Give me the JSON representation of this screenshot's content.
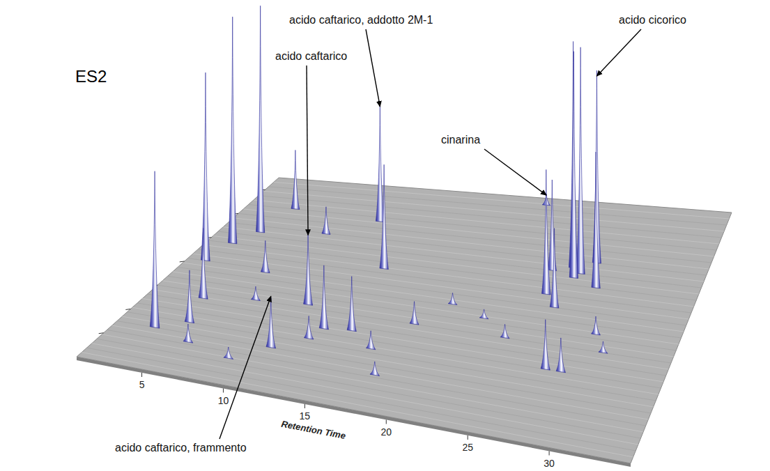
{
  "chart_data": {
    "type": "surface3d",
    "title": "ES2",
    "x_label": "Retention Time",
    "xlim": [
      1,
      35
    ],
    "xticks": [
      5,
      10,
      15,
      20,
      25,
      30
    ],
    "ylim": [
      0,
      750
    ],
    "yticks": [
      100,
      200,
      300,
      400,
      500,
      600,
      700
    ],
    "zlim": [
      0,
      100
    ],
    "tick_labels": "x",
    "color": "#2a2a9a",
    "peaks": [
      {
        "rt": 2.7,
        "mz": 488,
        "intensity": 100
      },
      {
        "rt": 3.7,
        "mz": 540,
        "intensity": 100
      },
      {
        "rt": 2.2,
        "mz": 413,
        "intensity": 83
      },
      {
        "rt": 3.4,
        "mz": 150,
        "intensity": 69
      },
      {
        "rt": 5.0,
        "mz": 188,
        "intensity": 23
      },
      {
        "rt": 4.4,
        "mz": 278,
        "intensity": 31
      },
      {
        "rt": 4.4,
        "mz": 638,
        "intensity": 26
      },
      {
        "rt": 10.8,
        "mz": 311,
        "intensity": 32
      },
      {
        "rt": 10.8,
        "mz": 150,
        "intensity": 22
      },
      {
        "rt": 12.9,
        "mz": 240,
        "intensity": 28
      },
      {
        "rt": 13.6,
        "mz": 465,
        "intensity": 46
      },
      {
        "rt": 10.8,
        "mz": 623,
        "intensity": 52
      },
      {
        "rt": 14.6,
        "mz": 248,
        "intensity": 24
      },
      {
        "rt": 18.0,
        "mz": 300,
        "intensity": 10
      },
      {
        "rt": 21.4,
        "mz": 728,
        "intensity": 5
      },
      {
        "rt": 26.5,
        "mz": 525,
        "intensity": 100
      },
      {
        "rt": 25.8,
        "mz": 540,
        "intensity": 100
      },
      {
        "rt": 26.2,
        "mz": 510,
        "intensity": 100
      },
      {
        "rt": 27.2,
        "mz": 563,
        "intensity": 85
      },
      {
        "rt": 25.0,
        "mz": 450,
        "intensity": 55
      },
      {
        "rt": 28.0,
        "mz": 488,
        "intensity": 60
      },
      {
        "rt": 24.5,
        "mz": 525,
        "intensity": 40
      },
      {
        "rt": 26.0,
        "mz": 413,
        "intensity": 35
      },
      {
        "rt": 27.5,
        "mz": 225,
        "intensity": 22
      },
      {
        "rt": 28.5,
        "mz": 225,
        "intensity": 15
      },
      {
        "rt": 6.0,
        "mz": 120,
        "intensity": 8
      },
      {
        "rt": 7.5,
        "mz": 300,
        "intensity": 6
      },
      {
        "rt": 9.0,
        "mz": 90,
        "intensity": 5
      },
      {
        "rt": 12.5,
        "mz": 200,
        "intensity": 10
      },
      {
        "rt": 16.5,
        "mz": 200,
        "intensity": 8
      },
      {
        "rt": 17.8,
        "mz": 120,
        "intensity": 6
      },
      {
        "rt": 19.5,
        "mz": 380,
        "intensity": 5
      },
      {
        "rt": 22.0,
        "mz": 350,
        "intensity": 4
      },
      {
        "rt": 24.0,
        "mz": 300,
        "intensity": 6
      },
      {
        "rt": 29.5,
        "mz": 350,
        "intensity": 8
      },
      {
        "rt": 30.5,
        "mz": 300,
        "intensity": 5
      },
      {
        "rt": 8.0,
        "mz": 560,
        "intensity": 12
      },
      {
        "rt": 6.5,
        "mz": 400,
        "intensity": 14
      }
    ],
    "annotations": [
      {
        "text": "acido caftarico, addotto 2M-1",
        "peak": 11
      },
      {
        "text": "acido caftarico",
        "peak": 7
      },
      {
        "text": "acido cicorico",
        "peak": 18
      },
      {
        "text": "cinarina",
        "peak": 14
      },
      {
        "text": "acido caftarico, frammento",
        "peak": 8
      }
    ]
  }
}
